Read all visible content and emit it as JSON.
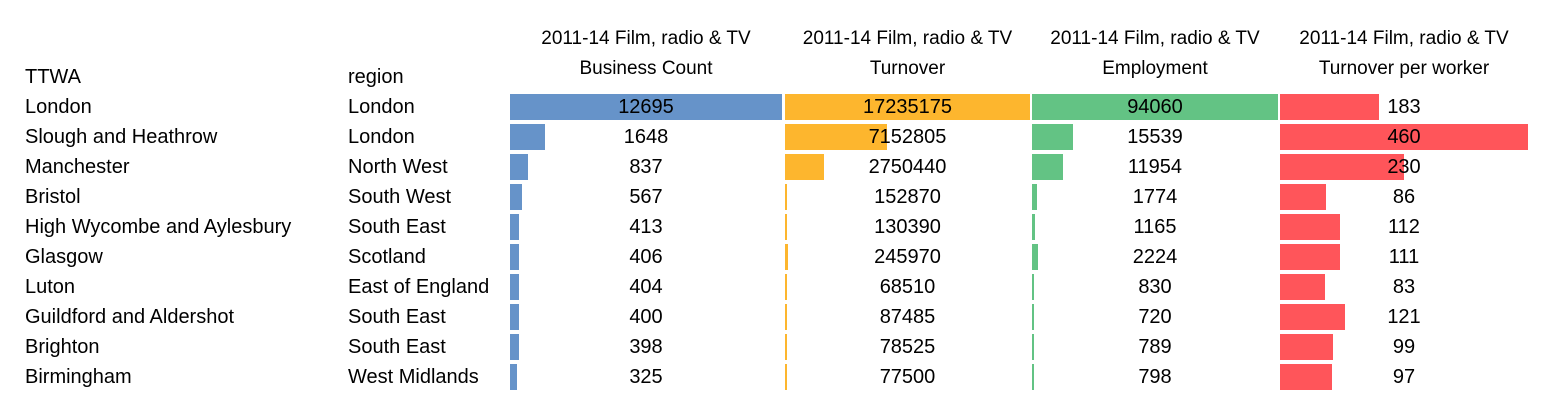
{
  "colors": {
    "business_count": "#6693C9",
    "turnover": "#FDB62E",
    "employment": "#63C384",
    "turnover_per_worker": "#FF555A"
  },
  "headers": {
    "ttwa": "TTWA",
    "region": "region",
    "business_count_line1": "2011-14 Film, radio & TV",
    "business_count_line2": "Business Count",
    "turnover_line1": "2011-14 Film, radio & TV",
    "turnover_line2": "Turnover",
    "employment_line1": "2011-14 Film, radio & TV",
    "employment_line2": "Employment",
    "tpw_line1": "2011-14 Film, radio & TV",
    "tpw_line2": "Turnover per worker"
  },
  "chart_data": {
    "type": "table",
    "columns": [
      "TTWA",
      "region",
      "Business Count",
      "Turnover",
      "Employment",
      "Turnover per worker"
    ],
    "rows": [
      {
        "ttwa": "London",
        "region": "London",
        "business_count": 12695,
        "turnover": 17235175,
        "employment": 94060,
        "turnover_per_worker": 183
      },
      {
        "ttwa": "Slough and Heathrow",
        "region": "London",
        "business_count": 1648,
        "turnover": 7152805,
        "employment": 15539,
        "turnover_per_worker": 460
      },
      {
        "ttwa": "Manchester",
        "region": "North West",
        "business_count": 837,
        "turnover": 2750440,
        "employment": 11954,
        "turnover_per_worker": 230
      },
      {
        "ttwa": "Bristol",
        "region": "South West",
        "business_count": 567,
        "turnover": 152870,
        "employment": 1774,
        "turnover_per_worker": 86
      },
      {
        "ttwa": "High Wycombe and Aylesbury",
        "region": "South East",
        "business_count": 413,
        "turnover": 130390,
        "employment": 1165,
        "turnover_per_worker": 112
      },
      {
        "ttwa": "Glasgow",
        "region": "Scotland",
        "business_count": 406,
        "turnover": 245970,
        "employment": 2224,
        "turnover_per_worker": 111
      },
      {
        "ttwa": "Luton",
        "region": "East of England",
        "business_count": 404,
        "turnover": 68510,
        "employment": 830,
        "turnover_per_worker": 83
      },
      {
        "ttwa": "Guildford and Aldershot",
        "region": "South East",
        "business_count": 400,
        "turnover": 87485,
        "employment": 720,
        "turnover_per_worker": 121
      },
      {
        "ttwa": "Brighton",
        "region": "South East",
        "business_count": 398,
        "turnover": 78525,
        "employment": 789,
        "turnover_per_worker": 99
      },
      {
        "ttwa": "Birmingham",
        "region": "West Midlands",
        "business_count": 325,
        "turnover": 77500,
        "employment": 798,
        "turnover_per_worker": 97
      }
    ]
  }
}
